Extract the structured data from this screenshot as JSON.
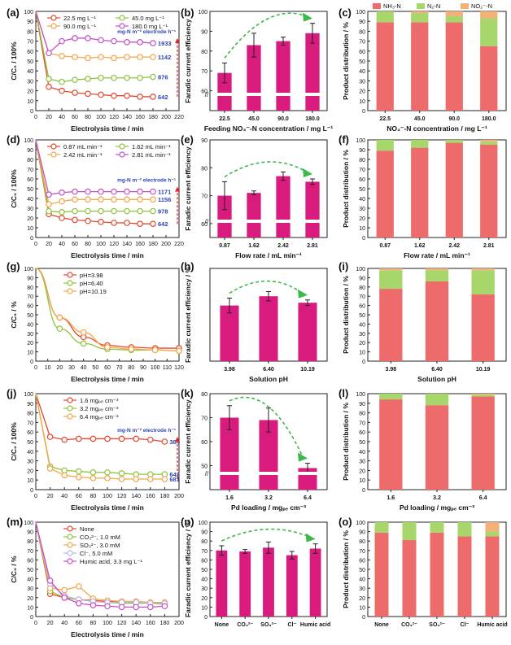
{
  "colors": {
    "pink": "#d81b7c",
    "red": "#e8462f",
    "green": "#8cc43c",
    "orange": "#f5a54a",
    "purple": "#c94fc9",
    "nh3": "#ee6b6b",
    "n2": "#a7d66a",
    "no2": "#f3b17a",
    "annot": "#2b45b6",
    "arrow": "#3db84a",
    "marker": "#e8202a"
  },
  "chart_data": [
    {
      "type": "line",
      "label": "(a)",
      "xlabel": "Electrolysis time / min",
      "ylabel": "C/C₀ / 100%",
      "xlim": [
        0,
        220
      ],
      "ylim": [
        0,
        100
      ],
      "xticks": [
        0,
        20,
        40,
        60,
        80,
        100,
        120,
        140,
        160,
        180,
        200,
        220
      ],
      "yticks": [
        0,
        10,
        20,
        30,
        40,
        50,
        60,
        70,
        80,
        90,
        100
      ],
      "annot_title": "mg-N m⁻² electrode h⁻¹",
      "series": [
        {
          "name": "22.5 mg L⁻¹",
          "color": "#e8462f",
          "x": [
            0,
            20,
            40,
            60,
            80,
            100,
            120,
            140,
            160,
            180
          ],
          "y": [
            100,
            24,
            20,
            18,
            17,
            16,
            15,
            15,
            14,
            14
          ],
          "end_label": "642"
        },
        {
          "name": "45.0 mg L⁻¹",
          "color": "#8cc43c",
          "x": [
            0,
            20,
            40,
            60,
            80,
            100,
            120,
            140,
            160,
            180
          ],
          "y": [
            100,
            32,
            29,
            31,
            32,
            33,
            33,
            33,
            33,
            34
          ],
          "end_label": "876"
        },
        {
          "name": "90.0 mg L⁻¹",
          "color": "#f5a54a",
          "x": [
            0,
            20,
            40,
            60,
            80,
            100,
            120,
            140,
            160,
            180
          ],
          "y": [
            100,
            58,
            55,
            54,
            53,
            54,
            53,
            54,
            54,
            54
          ],
          "end_label": "1142"
        },
        {
          "name": "180.0 mg L⁻¹",
          "color": "#c94fc9",
          "x": [
            0,
            20,
            40,
            60,
            80,
            100,
            120,
            140,
            160,
            180
          ],
          "y": [
            100,
            58,
            70,
            73,
            73,
            71,
            70,
            69,
            69,
            68
          ],
          "end_label": "1933"
        }
      ]
    },
    {
      "type": "bar",
      "label": "(b)",
      "xlabel": "Feeding NO₃⁻-N concentration / mg L⁻¹",
      "ylabel": "Faradic current efficiency",
      "ylim": [
        50,
        100
      ],
      "yticks": [
        60,
        70,
        80,
        90,
        100
      ],
      "categories": [
        "22.5",
        "45.0",
        "90.0",
        "180.0"
      ],
      "values": [
        69,
        83,
        85,
        89
      ],
      "errors": [
        5,
        6,
        2,
        5
      ]
    },
    {
      "type": "bar",
      "stacked": true,
      "label": "(c)",
      "xlabel": "NO₃⁻-N concentration / mg L⁻¹",
      "ylabel": "Product distribution / %",
      "ylim": [
        0,
        100
      ],
      "yticks": [
        0,
        10,
        20,
        30,
        40,
        50,
        60,
        70,
        80,
        90,
        100
      ],
      "categories": [
        "22.5",
        "45.0",
        "90.0",
        "180.0"
      ],
      "series": [
        {
          "name": "NH₃-N",
          "color": "#ee6b6b",
          "values": [
            89,
            89,
            89,
            65
          ]
        },
        {
          "name": "N₂-N",
          "color": "#a7d66a",
          "values": [
            11,
            9,
            6,
            28
          ]
        },
        {
          "name": "NO₂⁻-N",
          "color": "#f3b17a",
          "values": [
            0,
            2,
            5,
            7
          ]
        }
      ]
    },
    {
      "type": "line",
      "label": "(d)",
      "xlabel": "Electrolysis time / min",
      "ylabel": "C/C₀ / 100%",
      "xlim": [
        0,
        220
      ],
      "ylim": [
        0,
        100
      ],
      "xticks": [
        0,
        20,
        40,
        60,
        80,
        100,
        120,
        140,
        160,
        180,
        200,
        220
      ],
      "yticks": [
        0,
        10,
        20,
        30,
        40,
        50,
        60,
        70,
        80,
        90,
        100
      ],
      "annot_title": "mg-N m⁻² electrode h⁻¹",
      "series": [
        {
          "name": "0.87 mL min⁻¹",
          "color": "#e8462f",
          "x": [
            0,
            20,
            40,
            60,
            80,
            100,
            120,
            140,
            160,
            180
          ],
          "y": [
            100,
            24,
            20,
            18,
            17,
            16,
            15,
            15,
            14,
            14
          ],
          "end_label": "642"
        },
        {
          "name": "1.62 mL min⁻¹",
          "color": "#8cc43c",
          "x": [
            0,
            20,
            40,
            60,
            80,
            100,
            120,
            140,
            160,
            180
          ],
          "y": [
            100,
            27,
            26,
            27,
            27,
            27,
            27,
            27,
            27,
            27
          ],
          "end_label": "978"
        },
        {
          "name": "2.42 mL min⁻¹",
          "color": "#f5a54a",
          "x": [
            0,
            20,
            40,
            60,
            80,
            100,
            120,
            140,
            160,
            180
          ],
          "y": [
            100,
            34,
            37,
            39,
            39,
            39,
            39,
            39,
            39,
            39
          ],
          "end_label": "1156"
        },
        {
          "name": "2.81 mL min⁻¹",
          "color": "#c94fc9",
          "x": [
            0,
            20,
            40,
            60,
            80,
            100,
            120,
            140,
            160,
            180
          ],
          "y": [
            100,
            44,
            46,
            47,
            47,
            47,
            47,
            47,
            47,
            47
          ],
          "end_label": "1171"
        }
      ]
    },
    {
      "type": "bar",
      "label": "(e)",
      "xlabel": "Flow rate / mL min⁻¹",
      "ylabel": "Faradic current efficiency",
      "ylim": [
        55,
        90
      ],
      "yticks": [
        60,
        70,
        80,
        90
      ],
      "categories": [
        "0.87",
        "1.62",
        "2.42",
        "2.81"
      ],
      "values": [
        70,
        71,
        77,
        75
      ],
      "errors": [
        5,
        0.7,
        1.5,
        1
      ]
    },
    {
      "type": "bar",
      "stacked": true,
      "label": "(f)",
      "xlabel": "Flow rate / mL min⁻¹",
      "ylabel": "Product distribution / %",
      "ylim": [
        0,
        100
      ],
      "yticks": [
        0,
        10,
        20,
        30,
        40,
        50,
        60,
        70,
        80,
        90,
        100
      ],
      "categories": [
        "0.87",
        "1.62",
        "2.42",
        "2.81"
      ],
      "series": [
        {
          "name": "NH₃-N",
          "color": "#ee6b6b",
          "values": [
            89,
            92,
            97,
            95
          ]
        },
        {
          "name": "N₂-N",
          "color": "#a7d66a",
          "values": [
            11,
            8,
            3,
            3
          ]
        },
        {
          "name": "NO₂⁻-N",
          "color": "#f3b17a",
          "values": [
            0,
            0,
            0,
            2
          ]
        }
      ]
    },
    {
      "type": "line",
      "label": "(g)",
      "xlabel": "Electrolysis time / min",
      "ylabel": "C/C₀ / %",
      "xlim": [
        0,
        120
      ],
      "ylim": [
        0,
        100
      ],
      "xticks": [
        0,
        10,
        20,
        30,
        40,
        50,
        60,
        70,
        80,
        90,
        100,
        110,
        120
      ],
      "yticks": [
        0,
        10,
        20,
        30,
        40,
        50,
        60,
        70,
        80,
        90,
        100
      ],
      "smooth": true,
      "series": [
        {
          "name": "pH=3.98",
          "color": "#e8462f",
          "x": [
            0,
            20,
            40,
            60,
            80,
            100,
            120
          ],
          "y": [
            100,
            47,
            26,
            17,
            15,
            14,
            14
          ]
        },
        {
          "name": "pH=6.40",
          "color": "#8cc43c",
          "x": [
            0,
            20,
            40,
            60,
            80,
            100,
            120
          ],
          "y": [
            100,
            35,
            19,
            13,
            12,
            12,
            11
          ]
        },
        {
          "name": "pH=10.19",
          "color": "#f5a54a",
          "x": [
            0,
            20,
            40,
            60,
            80,
            100,
            120
          ],
          "y": [
            100,
            47,
            31,
            15,
            13,
            12,
            11
          ]
        }
      ]
    },
    {
      "type": "bar",
      "label": "(h)",
      "xlabel": "Solution pH",
      "ylabel": "Faradic current efficiency / %",
      "ylim": [
        0,
        100
      ],
      "categories": [
        "3.98",
        "6.40",
        "10.19"
      ],
      "values": [
        60,
        70,
        63
      ],
      "errors": [
        8,
        5,
        3
      ]
    },
    {
      "type": "bar",
      "stacked": true,
      "label": "(i)",
      "xlabel": "Solution pH",
      "ylabel": "Product distribution / %",
      "ylim": [
        0,
        100
      ],
      "yticks": [
        0,
        10,
        20,
        30,
        40,
        50,
        60,
        70,
        80,
        90,
        100
      ],
      "categories": [
        "3.98",
        "6.40",
        "10.19"
      ],
      "series": [
        {
          "name": "NH₃-N",
          "color": "#ee6b6b",
          "values": [
            78,
            86,
            72
          ]
        },
        {
          "name": "N₂-N",
          "color": "#a7d66a",
          "values": [
            20,
            12,
            26
          ]
        },
        {
          "name": "NO₂⁻-N",
          "color": "#f3b17a",
          "values": [
            2,
            2,
            2
          ]
        }
      ]
    },
    {
      "type": "line",
      "label": "(j)",
      "xlabel": "Electrolysis time / min",
      "ylabel": "C/C₀ / 100%",
      "xlim": [
        0,
        200
      ],
      "ylim": [
        0,
        100
      ],
      "xticks": [
        0,
        20,
        40,
        60,
        80,
        100,
        120,
        140,
        160,
        180,
        200
      ],
      "yticks": [
        0,
        10,
        20,
        30,
        40,
        50,
        60,
        70,
        80,
        90,
        100
      ],
      "annot_title": "mg-N m⁻² electrode h⁻¹",
      "series": [
        {
          "name": "1.6 mgₚₑ cm⁻³",
          "color": "#e8462f",
          "x": [
            0,
            20,
            40,
            60,
            80,
            100,
            120,
            140,
            160,
            180
          ],
          "y": [
            100,
            55,
            52,
            53,
            53,
            53,
            53,
            53,
            52,
            50
          ],
          "end_label": "384"
        },
        {
          "name": "3.2 mgₚₑ cm⁻³",
          "color": "#8cc43c",
          "x": [
            0,
            20,
            40,
            60,
            80,
            100,
            120,
            140,
            160,
            180
          ],
          "y": [
            100,
            24,
            20,
            19,
            18,
            18,
            17,
            16,
            16,
            16
          ],
          "end_label": "642"
        },
        {
          "name": "6.4 mgₚₑ cm⁻³",
          "color": "#f5a54a",
          "x": [
            0,
            20,
            40,
            60,
            80,
            100,
            120,
            140,
            160,
            180
          ],
          "y": [
            100,
            22,
            15,
            13,
            12,
            12,
            11,
            11,
            11,
            11
          ],
          "end_label": "681"
        }
      ]
    },
    {
      "type": "bar",
      "label": "(k)",
      "xlabel": "Pd loading / mgₚₑ cm⁻³",
      "ylabel": "Faradic current efficiency",
      "ylim": [
        40,
        80
      ],
      "yticks": [
        50,
        60,
        70,
        80
      ],
      "categories": [
        "1.6",
        "3.2",
        "6.4"
      ],
      "values": [
        70,
        69,
        49
      ],
      "errors": [
        5,
        5,
        2
      ]
    },
    {
      "type": "bar",
      "stacked": true,
      "label": "(l)",
      "xlabel": "Pd loading / mgₚₑ cm⁻³",
      "ylabel": "Product distribution / %",
      "ylim": [
        0,
        100
      ],
      "yticks": [
        0,
        10,
        20,
        30,
        40,
        50,
        60,
        70,
        80,
        90,
        100
      ],
      "categories": [
        "1.6",
        "3.2",
        "6.4"
      ],
      "series": [
        {
          "name": "NH₃-N",
          "color": "#ee6b6b",
          "values": [
            94,
            88,
            97
          ]
        },
        {
          "name": "N₂-N",
          "color": "#a7d66a",
          "values": [
            6,
            12,
            2
          ]
        },
        {
          "name": "NO₂⁻-N",
          "color": "#f3b17a",
          "values": [
            0,
            0,
            1
          ]
        }
      ]
    },
    {
      "type": "line",
      "label": "(m)",
      "xlabel": "Electrolysis time / min",
      "ylabel": "C/C₀ / %",
      "xlim": [
        0,
        200
      ],
      "ylim": [
        0,
        100
      ],
      "xticks": [
        0,
        20,
        40,
        60,
        80,
        100,
        120,
        140,
        160,
        180,
        200
      ],
      "yticks": [
        0,
        10,
        20,
        30,
        40,
        50,
        60,
        70,
        80,
        90,
        100
      ],
      "series": [
        {
          "name": "None",
          "color": "#e8462f",
          "x": [
            0,
            20,
            40,
            60,
            80,
            100,
            120,
            140,
            160,
            180
          ],
          "y": [
            100,
            24,
            20,
            18,
            17,
            16,
            15,
            15,
            14,
            14
          ]
        },
        {
          "name": "CO₃²⁻, 1.0 mM",
          "color": "#8cc43c",
          "x": [
            0,
            20,
            40,
            60,
            80,
            100,
            120,
            140,
            160,
            180
          ],
          "y": [
            100,
            27,
            20,
            18,
            16,
            15,
            14,
            14,
            14,
            13
          ]
        },
        {
          "name": "SO₃²⁻, 3.0 mM",
          "color": "#f5a54a",
          "x": [
            0,
            20,
            40,
            60,
            80,
            100,
            120,
            140,
            160,
            180
          ],
          "y": [
            100,
            30,
            28,
            32,
            19,
            17,
            16,
            16,
            15,
            15
          ]
        },
        {
          "name": "Cl⁻, 5.0 mM",
          "color": "#b9b6e6",
          "x": [
            0,
            20,
            40,
            60,
            80,
            100,
            120,
            140,
            160,
            180
          ],
          "y": [
            100,
            35,
            22,
            18,
            16,
            15,
            15,
            15,
            14,
            14
          ]
        },
        {
          "name": "Humic acid, 3.3 mg L⁻¹",
          "color": "#c94fc9",
          "x": [
            0,
            20,
            40,
            60,
            80,
            100,
            120,
            140,
            160,
            180
          ],
          "y": [
            100,
            38,
            20,
            14,
            12,
            11,
            10,
            10,
            10,
            11
          ]
        }
      ]
    },
    {
      "type": "bar",
      "label": "(n)",
      "xlabel": "",
      "ylabel": "Faradic current efficiency / %",
      "ylim": [
        0,
        100
      ],
      "yticks": [
        0,
        10,
        20,
        30,
        40,
        50,
        60,
        70,
        80,
        90,
        100
      ],
      "categories": [
        "None",
        "CO₃²⁻",
        "SO₃²⁻",
        "Cl⁻",
        "Humic acid"
      ],
      "values": [
        70,
        69,
        73,
        65,
        72
      ],
      "errors": [
        5,
        2,
        6,
        4,
        5
      ]
    },
    {
      "type": "bar",
      "stacked": true,
      "label": "(o)",
      "xlabel": "",
      "ylabel": "Product distribution / %",
      "ylim": [
        0,
        100
      ],
      "yticks": [
        0,
        10,
        20,
        30,
        40,
        50,
        60,
        70,
        80,
        90,
        100
      ],
      "categories": [
        "None",
        "CO₃²⁻",
        "SO₃²⁻",
        "Cl⁻",
        "Humic acid"
      ],
      "series": [
        {
          "name": "NH₃-N",
          "color": "#ee6b6b",
          "values": [
            89,
            81,
            89,
            85,
            85
          ]
        },
        {
          "name": "N₂-N",
          "color": "#a7d66a",
          "values": [
            11,
            19,
            11,
            15,
            5
          ]
        },
        {
          "name": "NO₂⁻-N",
          "color": "#f3b17a",
          "values": [
            0,
            0,
            0,
            0,
            10
          ]
        }
      ]
    }
  ]
}
